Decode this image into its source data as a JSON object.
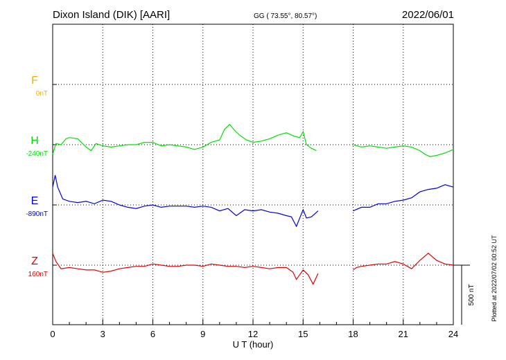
{
  "header": {
    "station": "Dixon Island (DIK)  [AARI]",
    "coords": "GG ( 73.55°,  80.57°)",
    "date": "2022/06/01"
  },
  "footer": {
    "plotted": "Plotted at 2022/07/02 00:52 UT"
  },
  "chart_data": {
    "type": "line",
    "title": "Dixon Island (DIK)  [AARI]",
    "xlabel": "U T (hour)",
    "xlim": [
      0,
      24
    ],
    "x_ticks": [
      "0",
      "3",
      "6",
      "9",
      "12",
      "15",
      "18",
      "21",
      "24"
    ],
    "grid": true,
    "scale_bar": {
      "label": "500 nT",
      "value_nT": 500
    },
    "series": [
      {
        "name": "F",
        "offset": "0nT",
        "color": "#f0b400",
        "values": []
      },
      {
        "name": "H",
        "offset": "-240nT",
        "color": "#00e000",
        "x": [
          0,
          0.2,
          0.5,
          0.8,
          1,
          1.5,
          2,
          2.3,
          2.6,
          3,
          3.5,
          4,
          4.5,
          5,
          5.5,
          6,
          6.5,
          7,
          7.5,
          8,
          8.5,
          9,
          9.5,
          10,
          10.3,
          10.6,
          10.9,
          11.2,
          11.6,
          12,
          12.5,
          13,
          13.5,
          14,
          14.5,
          14.8,
          15,
          15.2,
          15.5,
          15.8,
          null,
          18,
          18.5,
          19,
          19.5,
          20,
          20.5,
          21,
          21.5,
          22,
          22.3,
          22.6,
          23,
          23.5,
          24
        ],
        "values": [
          -80,
          10,
          0,
          50,
          60,
          50,
          -20,
          -50,
          10,
          -10,
          -20,
          -10,
          0,
          0,
          20,
          20,
          -10,
          0,
          -10,
          -20,
          -40,
          -20,
          20,
          40,
          130,
          170,
          120,
          80,
          40,
          20,
          30,
          50,
          80,
          100,
          70,
          60,
          110,
          0,
          -30,
          -50,
          null,
          0,
          -20,
          -10,
          -20,
          -30,
          -20,
          -10,
          -20,
          -50,
          -80,
          -100,
          -90,
          -70,
          -40
        ]
      },
      {
        "name": "E",
        "offset": "-890nT",
        "color": "#0000e0",
        "x": [
          0,
          0.15,
          0.3,
          0.6,
          1,
          1.5,
          2,
          2.5,
          3,
          3.5,
          4,
          4.5,
          5,
          5.5,
          6,
          6.5,
          7,
          7.5,
          8,
          8.5,
          9,
          9.5,
          10,
          10.5,
          11,
          11.5,
          12,
          12.5,
          13,
          13.5,
          14,
          14.3,
          14.6,
          15,
          15.2,
          15.5,
          15.9,
          null,
          18,
          18.5,
          19,
          19.5,
          20,
          20.5,
          21,
          21.5,
          22,
          22.5,
          23,
          23.5,
          24
        ],
        "values": [
          150,
          250,
          150,
          50,
          30,
          20,
          30,
          10,
          40,
          30,
          0,
          -20,
          -30,
          -10,
          0,
          -20,
          -10,
          -10,
          -10,
          -20,
          -10,
          -20,
          -50,
          -30,
          -90,
          -40,
          -50,
          -40,
          -60,
          -70,
          -90,
          -100,
          -180,
          -40,
          -110,
          -100,
          -50,
          null,
          -50,
          -20,
          -20,
          10,
          10,
          30,
          40,
          60,
          110,
          130,
          140,
          170,
          150
        ]
      },
      {
        "name": "Z",
        "offset": "160nT",
        "color": "#e00000",
        "x": [
          0,
          0.2,
          0.5,
          1,
          1.5,
          2,
          2.5,
          3,
          3.5,
          4,
          4.5,
          5,
          5.5,
          6,
          6.5,
          7,
          7.5,
          8,
          8.5,
          9,
          9.5,
          10,
          10.5,
          11,
          11.5,
          12,
          12.5,
          13,
          13.5,
          14,
          14.4,
          14.6,
          15,
          15.3,
          15.6,
          15.9,
          null,
          18,
          18.2,
          18.5,
          19,
          19.5,
          20,
          20.5,
          21,
          21.5,
          22,
          22.5,
          23,
          23.5,
          24
        ],
        "values": [
          100,
          30,
          -30,
          -20,
          -30,
          -40,
          -40,
          -60,
          -50,
          -30,
          -20,
          -10,
          -10,
          10,
          0,
          -10,
          -10,
          0,
          0,
          -10,
          10,
          0,
          -10,
          -10,
          -20,
          -10,
          -20,
          -30,
          -20,
          -20,
          -60,
          -120,
          -40,
          -80,
          -160,
          -70,
          null,
          -40,
          -20,
          -10,
          0,
          10,
          10,
          30,
          10,
          -30,
          40,
          100,
          40,
          10,
          0
        ]
      }
    ]
  }
}
